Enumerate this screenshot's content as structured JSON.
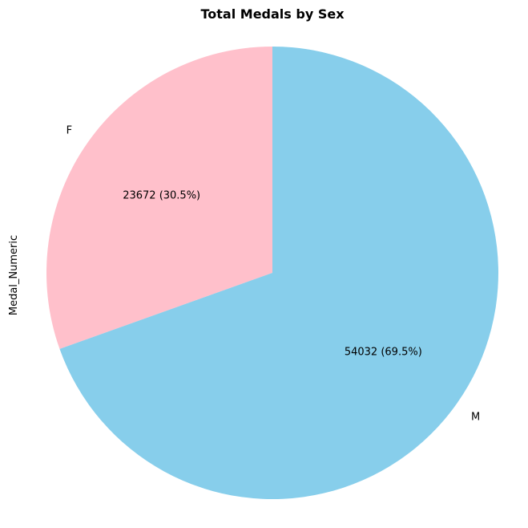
{
  "chart_data": {
    "type": "pie",
    "title": "Total Medals by Sex",
    "ylabel": "Medal_Numeric",
    "slices": [
      {
        "label": "F",
        "value": 23672,
        "percent": "30.5%",
        "autopct": "23672 (30.5%)",
        "color": "#FFC0CB"
      },
      {
        "label": "M",
        "value": 54032,
        "percent": "69.5%",
        "autopct": "54032 (69.5%)",
        "color": "#87CEEB"
      }
    ],
    "start_angle_deg": 90,
    "direction": "counterclockwise"
  }
}
